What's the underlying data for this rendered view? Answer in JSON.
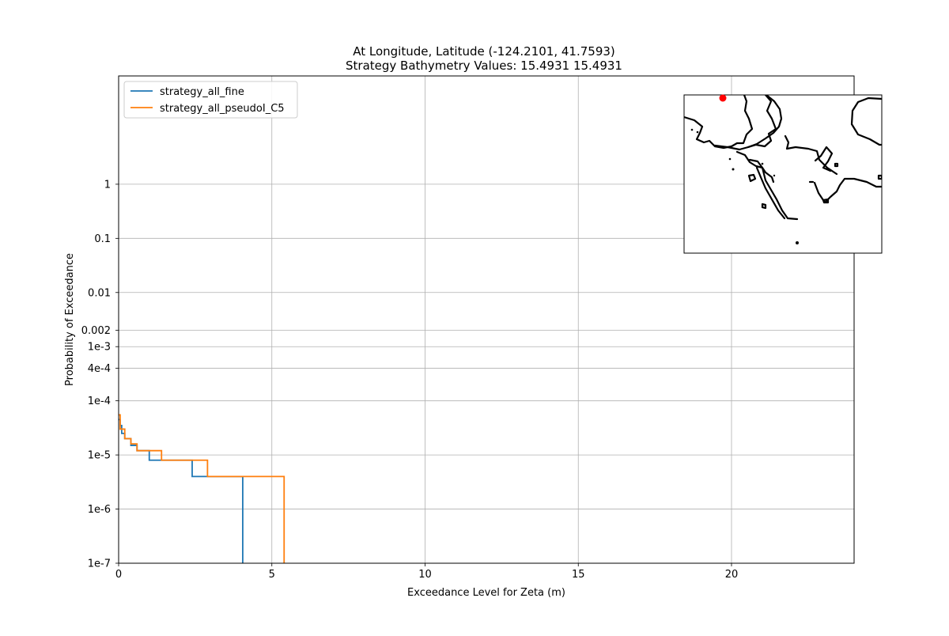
{
  "chart_data": {
    "type": "line",
    "title": "At Longitude, Latitude (-124.2101,  41.7593)",
    "subtitle": "Strategy Bathymetry Values:   15.4931   15.4931",
    "xlabel": "Exceedance Level for Zeta (m)",
    "ylabel": "Probability of Exceedance",
    "xlim": [
      0,
      24
    ],
    "ylim": [
      1e-07,
      100
    ],
    "yscale": "log",
    "grid": true,
    "legend_position": "upper-left",
    "x_ticks": [
      {
        "value": 0,
        "label": "0"
      },
      {
        "value": 5,
        "label": "5"
      },
      {
        "value": 10,
        "label": "10"
      },
      {
        "value": 15,
        "label": "15"
      },
      {
        "value": 20,
        "label": "20"
      }
    ],
    "y_ticks": [
      {
        "value": 1,
        "label": "1"
      },
      {
        "value": 0.1,
        "label": "0.1"
      },
      {
        "value": 0.01,
        "label": "0.01"
      },
      {
        "value": 0.002,
        "label": "0.002"
      },
      {
        "value": 0.001,
        "label": "1e-3"
      },
      {
        "value": 0.0004,
        "label": "4e-4"
      },
      {
        "value": 0.0001,
        "label": "1e-4"
      },
      {
        "value": 1e-05,
        "label": "1e-5"
      },
      {
        "value": 1e-06,
        "label": "1e-6"
      },
      {
        "value": 1e-07,
        "label": "1e-7"
      }
    ],
    "series": [
      {
        "name": "strategy_all_fine",
        "color": "#1f77b4",
        "step": "post",
        "x": [
          0,
          0.05,
          0.1,
          0.2,
          0.4,
          0.6,
          1.0,
          2.4,
          4.05,
          4.05
        ],
        "y": [
          4.5e-05,
          3.5e-05,
          2.5e-05,
          2e-05,
          1.5e-05,
          1.2e-05,
          8e-06,
          4e-06,
          4e-06,
          1e-07
        ]
      },
      {
        "name": "strategy_all_pseudoI_C5",
        "color": "#ff7f0e",
        "step": "post",
        "x": [
          0,
          0.05,
          0.2,
          0.4,
          0.6,
          1.4,
          2.9,
          5.4,
          5.4
        ],
        "y": [
          5.5e-05,
          3e-05,
          2e-05,
          1.6e-05,
          1.2e-05,
          8e-06,
          4e-06,
          4e-06,
          1e-07
        ]
      }
    ],
    "inset": {
      "type": "location-map",
      "marker_color": "#ff0000"
    }
  }
}
